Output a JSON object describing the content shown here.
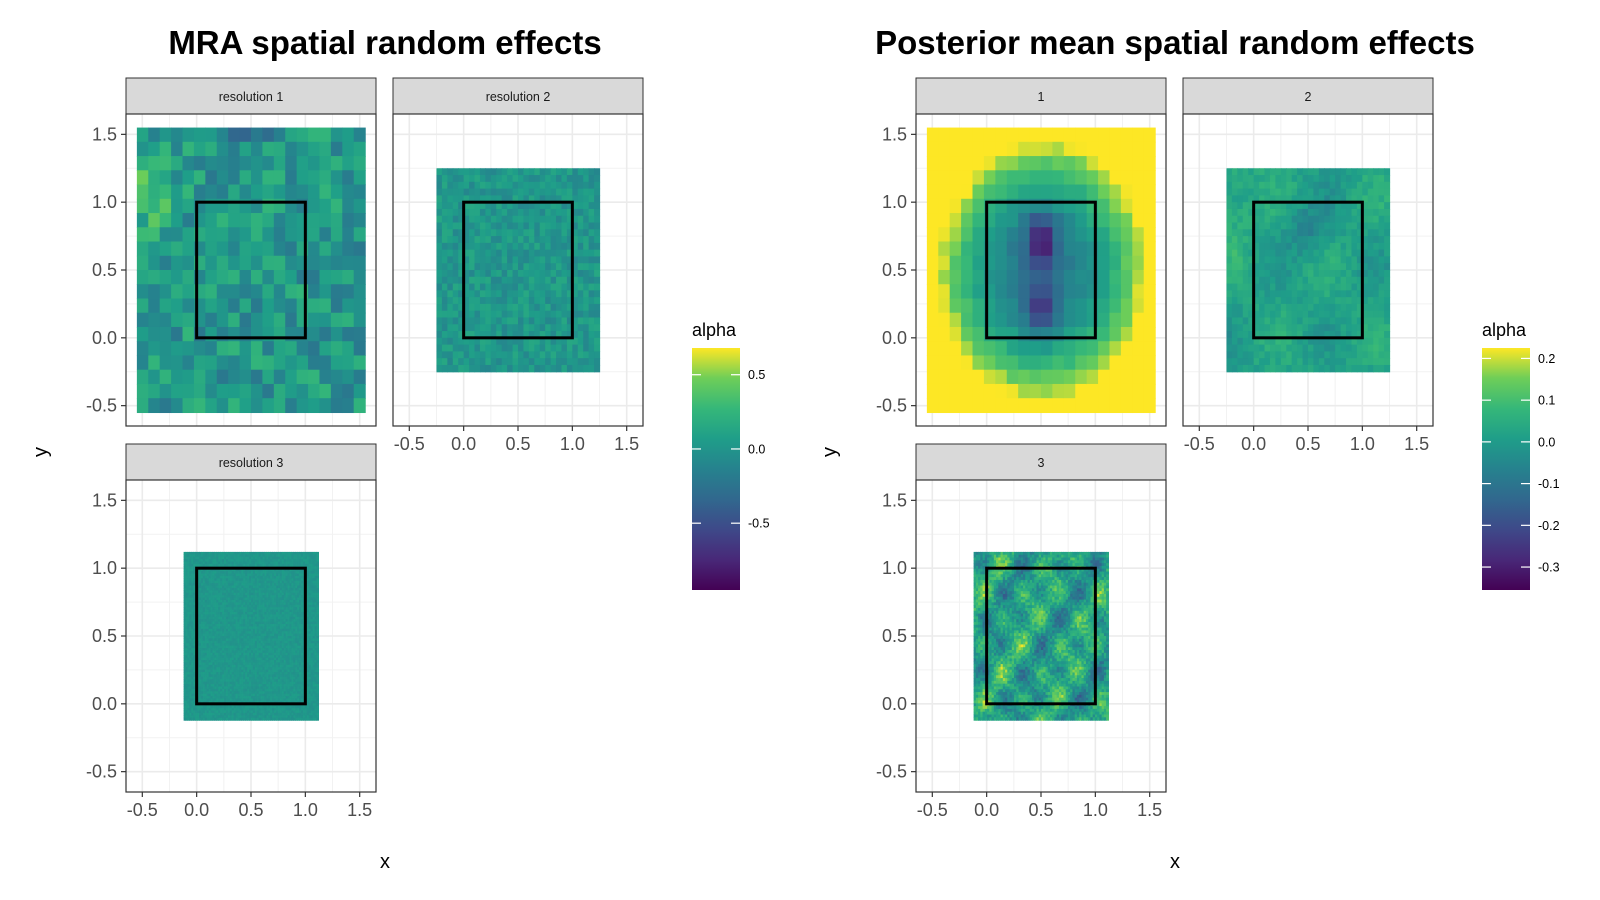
{
  "chart_data": [
    {
      "type": "heatmap",
      "title": "MRA spatial random effects",
      "xlabel": "x",
      "ylabel": "y",
      "xlim": [
        -0.65,
        1.65
      ],
      "ylim": [
        -0.65,
        1.65
      ],
      "x_ticks": [
        -0.5,
        0.0,
        0.5,
        1.0,
        1.5
      ],
      "y_ticks": [
        -0.5,
        0.0,
        0.5,
        1.0,
        1.5
      ],
      "x_tick_labels": [
        "-0.5",
        "0.0",
        "0.5",
        "1.0",
        "1.5"
      ],
      "y_tick_labels": [
        "-0.5",
        "0.0",
        "0.5",
        "1.0",
        "1.5"
      ],
      "grid": true,
      "domain_box": {
        "x": [
          0,
          1
        ],
        "y": [
          0,
          1
        ]
      },
      "colorscale": "viridis",
      "legend": {
        "title": "alpha",
        "position": "right",
        "range": [
          -0.95,
          0.68
        ],
        "ticks": [
          0.5,
          0.0,
          -0.5
        ],
        "tick_labels": [
          "0.5",
          "0.0",
          "-0.5"
        ]
      },
      "panels": [
        {
          "label": "resolution 1",
          "x_range": [
            -0.55,
            1.55
          ],
          "y_range": [
            -0.55,
            1.55
          ],
          "cells": 20,
          "spread": 0.24,
          "smooth": 0
        },
        {
          "label": "resolution 2",
          "x_range": [
            -0.25,
            1.25
          ],
          "y_range": [
            -0.25,
            1.25
          ],
          "cells": 30,
          "spread": 0.13,
          "smooth": 0
        },
        {
          "label": "resolution 3",
          "x_range": [
            -0.12,
            1.12
          ],
          "y_range": [
            -0.12,
            1.12
          ],
          "cells": 70,
          "spread": 0.05,
          "smooth": 0
        }
      ]
    },
    {
      "type": "heatmap",
      "title": "Posterior mean spatial random effects",
      "xlabel": "x",
      "ylabel": "y",
      "xlim": [
        -0.65,
        1.65
      ],
      "ylim": [
        -0.65,
        1.65
      ],
      "x_ticks": [
        -0.5,
        0.0,
        0.5,
        1.0,
        1.5
      ],
      "y_ticks": [
        -0.5,
        0.0,
        0.5,
        1.0,
        1.5
      ],
      "x_tick_labels": [
        "-0.5",
        "0.0",
        "0.5",
        "1.0",
        "1.5"
      ],
      "y_tick_labels": [
        "-0.5",
        "0.0",
        "0.5",
        "1.0",
        "1.5"
      ],
      "grid": true,
      "domain_box": {
        "x": [
          0,
          1
        ],
        "y": [
          0,
          1
        ]
      },
      "colorscale": "viridis",
      "legend": {
        "title": "alpha",
        "position": "right",
        "range": [
          -0.355,
          0.225
        ],
        "ticks": [
          0.2,
          0.1,
          0.0,
          -0.1,
          -0.2,
          -0.3
        ],
        "tick_labels": [
          "0.2",
          "0.1",
          "0.0",
          "-0.1",
          "-0.2",
          "-0.3"
        ]
      },
      "panels": [
        {
          "label": "1",
          "x_range": [
            -0.55,
            1.55
          ],
          "y_range": [
            -0.55,
            1.55
          ],
          "cells": 20,
          "spread": 0.02,
          "smooth": 1
        },
        {
          "label": "2",
          "x_range": [
            -0.25,
            1.25
          ],
          "y_range": [
            -0.25,
            1.25
          ],
          "cells": 30,
          "spread": 0.03,
          "smooth": 2
        },
        {
          "label": "3",
          "x_range": [
            -0.12,
            1.12
          ],
          "y_range": [
            -0.12,
            1.12
          ],
          "cells": 60,
          "spread": 0.06,
          "smooth": 3
        }
      ]
    }
  ]
}
